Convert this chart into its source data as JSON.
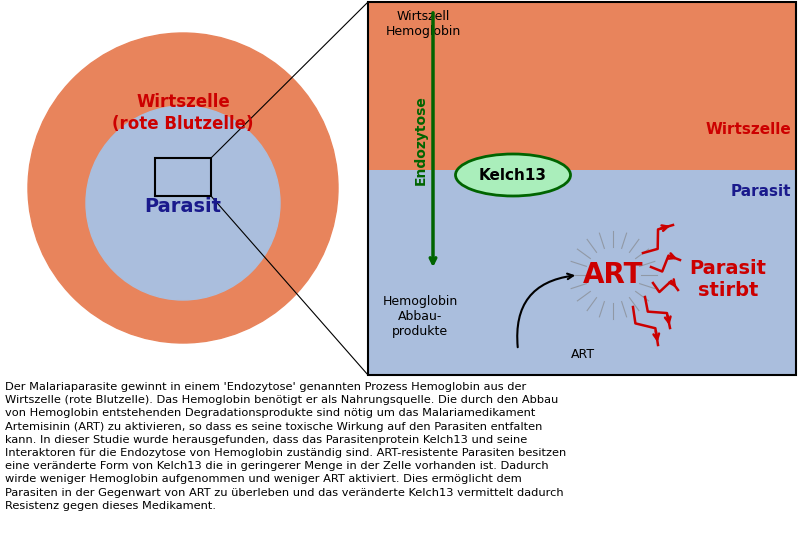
{
  "fig_width": 8.0,
  "fig_height": 5.56,
  "dpi": 100,
  "bg_color": "#ffffff",
  "orange_color": "#E8845C",
  "blue_color": "#AABEDD",
  "dark_blue": "#1A1A8C",
  "dark_red": "#CC0000",
  "dark_green": "#006400",
  "light_green": "#AAEEBB",
  "black": "#000000",
  "caption_text": "Der Malariaparasite gewinnt in einem 'Endozytose' genannten Prozess Hemoglobin aus der\nWirtszelle (rote Blutzelle). Das Hemoglobin benötigt er als Nahrungsquelle. Die durch den Abbau\nvon Hemoglobin entstehenden Degradationsprodukte sind nötig um das Malariamedikament\nArtemisinin (ART) zu aktivieren, so dass es seine toxische Wirkung auf den Parasiten entfalten\nkann. In dieser Studie wurde herausgefunden, dass das Parasitenprotein Kelch13 und seine\nInteraktoren für die Endozytose von Hemoglobin zuständig sind. ART-resistente Parasiten besitzen\neine veränderte Form von Kelch13 die in geringerer Menge in der Zelle vorhanden ist. Dadurch\nwirde weniger Hemoglobin aufgenommen und weniger ART aktiviert. Dies ermöglicht dem\nParasiten in der Gegenwart von ART zu überleben und das veränderte Kelch13 vermittelt dadurch\nResistenz gegen dieses Medikament."
}
